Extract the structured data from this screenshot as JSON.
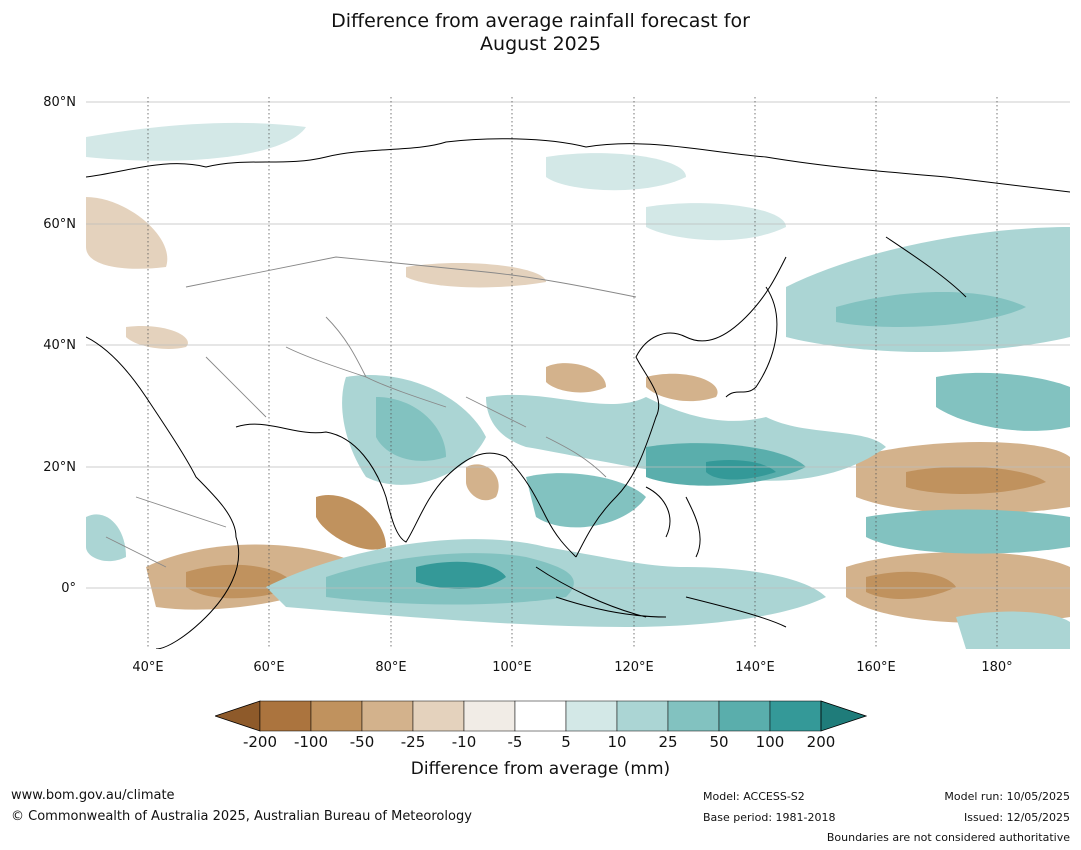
{
  "title_line1": "Difference from average rainfall forecast for",
  "title_line2": "August 2025",
  "lat_labels": [
    "80°N",
    "60°N",
    "40°N",
    "20°N",
    "0°"
  ],
  "lon_labels": [
    "40°E",
    "60°E",
    "80°E",
    "100°E",
    "120°E",
    "140°E",
    "160°E",
    "180°"
  ],
  "colorbar": {
    "ticks": [
      "-200",
      "-100",
      "-50",
      "-25",
      "-10",
      "-5",
      "5",
      "10",
      "25",
      "50",
      "100",
      "200"
    ],
    "colors": [
      "#8e5a2a",
      "#ab743e",
      "#c0925e",
      "#d3b28c",
      "#e4d2bd",
      "#f1ece6",
      "#ffffff",
      "#d3e8e7",
      "#abd5d4",
      "#82c2c0",
      "#5aaeac",
      "#349998",
      "#1f7c7a"
    ],
    "label": "Difference from average (mm)"
  },
  "footer": {
    "url": "www.bom.gov.au/climate",
    "copyright": "© Commonwealth of Australia 2025, Australian Bureau of Meteorology",
    "model": "Model: ACCESS-S2",
    "base_period": "Base period: 1981-2018",
    "model_run": "Model run: 10/05/2025",
    "issued": "Issued: 12/05/2025",
    "disclaimer": "Boundaries are not considered authoritative"
  }
}
